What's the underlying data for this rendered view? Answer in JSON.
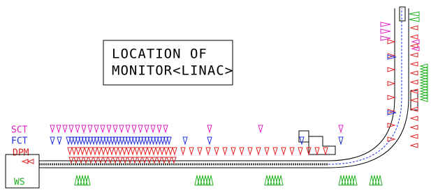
{
  "title": {
    "line1": "LOCATION OF",
    "line2": "MONITOR<LINAC>"
  },
  "legend": {
    "sct": "SCT",
    "fct": "FCT",
    "dpm": "DPM",
    "ws": "WS"
  }
}
